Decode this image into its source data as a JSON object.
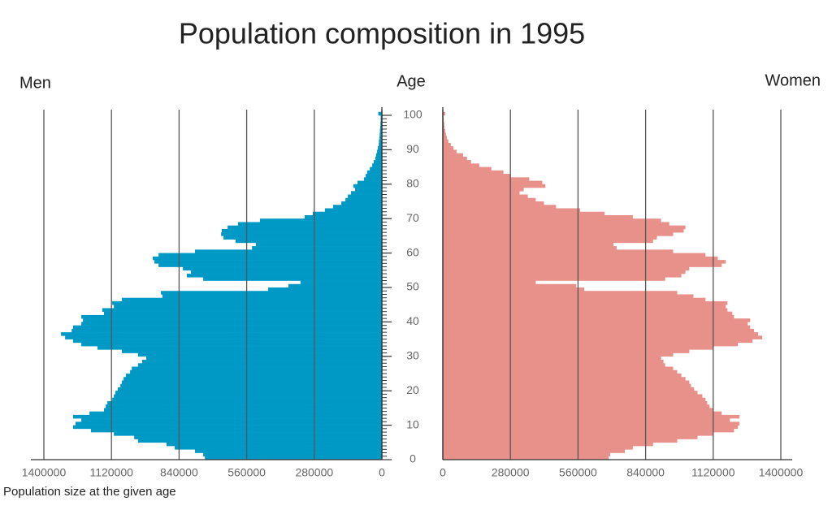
{
  "chart_data": {
    "type": "pyramid",
    "title": "Population composition in 1995",
    "left_label": "Men",
    "right_label": "Women",
    "y_label": "Age",
    "x_label": "Population size at the given age",
    "ages": [
      0,
      1,
      2,
      3,
      4,
      5,
      6,
      7,
      8,
      9,
      10,
      11,
      12,
      13,
      14,
      15,
      16,
      17,
      18,
      19,
      20,
      21,
      22,
      23,
      24,
      25,
      26,
      27,
      28,
      29,
      30,
      31,
      32,
      33,
      34,
      35,
      36,
      37,
      38,
      39,
      40,
      41,
      42,
      43,
      44,
      45,
      46,
      47,
      48,
      49,
      50,
      51,
      52,
      53,
      54,
      55,
      56,
      57,
      58,
      59,
      60,
      61,
      62,
      63,
      64,
      65,
      66,
      67,
      68,
      69,
      70,
      71,
      72,
      73,
      74,
      75,
      76,
      77,
      78,
      79,
      80,
      81,
      82,
      83,
      84,
      85,
      86,
      87,
      88,
      89,
      90,
      91,
      92,
      93,
      94,
      95,
      96,
      97,
      98,
      99,
      100
    ],
    "series": [
      {
        "name": "Men",
        "color": "#0099c6",
        "values": [
          733000,
          740000,
          774000,
          858000,
          892000,
          1010000,
          1026000,
          1110000,
          1205000,
          1279000,
          1269000,
          1245000,
          1279000,
          1211000,
          1151000,
          1144000,
          1137000,
          1117000,
          1110000,
          1104000,
          1094000,
          1083000,
          1077000,
          1070000,
          1060000,
          1043000,
          1036000,
          1010000,
          993000,
          976000,
          1010000,
          1077000,
          1178000,
          1245000,
          1279000,
          1312000,
          1329000,
          1285000,
          1279000,
          1245000,
          1238000,
          1245000,
          1151000,
          1158000,
          1110000,
          1117000,
          1077000,
          909000,
          915000,
          471000,
          387000,
          337000,
          740000,
          808000,
          791000,
          824000,
          925000,
          942000,
          949000,
          925000,
          774000,
          538000,
          522000,
          606000,
          656000,
          666000,
          663000,
          639000,
          596000,
          505000,
          320000,
          286000,
          236000,
          202000,
          168000,
          151000,
          141000,
          128000,
          111000,
          118000,
          101000,
          74000,
          67000,
          61000,
          50000,
          40000,
          34000,
          27000,
          24000,
          20000,
          17000,
          13000,
          12000,
          10000,
          9000,
          8000,
          7000,
          6000,
          5000,
          5000,
          15000
        ]
      },
      {
        "name": "Women",
        "color": "#e8908a",
        "values": [
          687000,
          693000,
          754000,
          787000,
          871000,
          971000,
          1055000,
          1122000,
          1206000,
          1222000,
          1229000,
          1189000,
          1229000,
          1155000,
          1122000,
          1105000,
          1095000,
          1088000,
          1075000,
          1055000,
          1041000,
          1028000,
          1021000,
          1005000,
          988000,
          971000,
          954000,
          921000,
          914000,
          904000,
          954000,
          1021000,
          1122000,
          1222000,
          1283000,
          1323000,
          1306000,
          1289000,
          1273000,
          1263000,
          1273000,
          1206000,
          1199000,
          1179000,
          1172000,
          1179000,
          1088000,
          1038000,
          971000,
          586000,
          553000,
          385000,
          921000,
          988000,
          1005000,
          1021000,
          1155000,
          1172000,
          1139000,
          1088000,
          954000,
          720000,
          707000,
          871000,
          887000,
          954000,
          998000,
          1005000,
          938000,
          904000,
          787000,
          670000,
          569000,
          469000,
          419000,
          385000,
          352000,
          318000,
          335000,
          425000,
          412000,
          358000,
          278000,
          251000,
          201000,
          151000,
          117000,
          100000,
          84000,
          57000,
          44000,
          33000,
          23000,
          17000,
          13000,
          10000,
          7000,
          6000,
          4000,
          3000,
          10000
        ]
      }
    ],
    "xlim": [
      0,
      1400000
    ],
    "xticks": [
      0,
      280000,
      560000,
      840000,
      1120000,
      1400000
    ],
    "ylim": [
      0,
      100
    ],
    "yticks": [
      0,
      10,
      20,
      30,
      40,
      50,
      60,
      70,
      80,
      90,
      100
    ],
    "grid": true
  }
}
